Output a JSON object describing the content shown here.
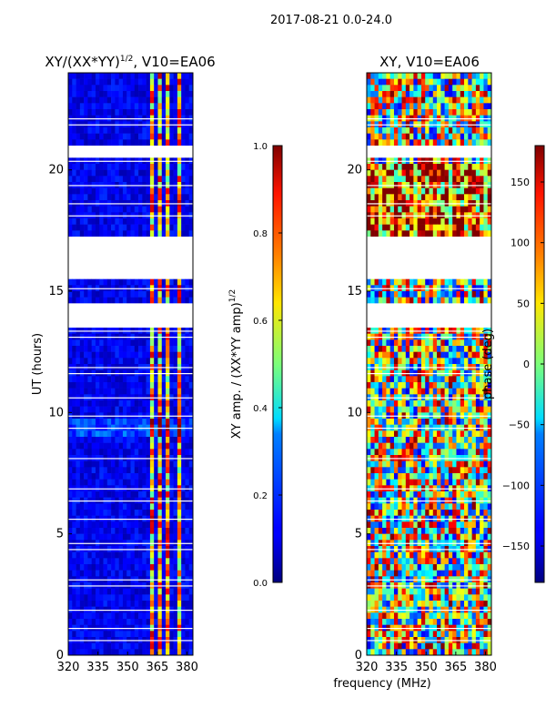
{
  "figure_title": "2017-08-21 0.0-24.0",
  "shared_xlabel": "frequency (MHz)",
  "colors": {
    "band_low": "#00008f",
    "band_mid": "#2ad4ff",
    "band_high": "#ffd400",
    "band_peak": "#ff2a00",
    "gap": "#ffffff"
  },
  "chart_data": [
    {
      "type": "heatmap",
      "title_text": "XY/(XX*YY)",
      "title_exp": "1/2",
      "title_suffix": ", V10=EA06",
      "ylabel": "UT (hours)",
      "xlabel": "",
      "xlim": [
        320,
        383
      ],
      "ylim": [
        0,
        24
      ],
      "xticks": [
        320,
        335,
        350,
        365,
        380
      ],
      "yticks": [
        0,
        5,
        10,
        15,
        20
      ],
      "colorbar": {
        "label_text": "XY amp. / (XX*YY amp)",
        "label_exp": "1/2",
        "range": [
          0.0,
          1.0
        ],
        "ticks": [
          "0.0",
          "0.2",
          "0.4",
          "0.6",
          "0.8",
          "1.0"
        ]
      },
      "data_gaps_hours": [
        [
          14.7,
          13.6
        ],
        [
          17.3,
          16.2
        ],
        [
          15.5,
          16.0
        ],
        [
          20.5,
          21.0
        ]
      ],
      "high_amplitude_freq_bands_mhz": [
        [
          361,
          364
        ],
        [
          365,
          368
        ],
        [
          370,
          372
        ],
        [
          375,
          378
        ]
      ]
    },
    {
      "type": "heatmap",
      "title_text": "XY, V10=EA06",
      "ylabel": "",
      "xlabel": "frequency (MHz)",
      "xlim": [
        320,
        383
      ],
      "ylim": [
        0,
        24
      ],
      "xticks": [
        320,
        335,
        350,
        365,
        380
      ],
      "yticks": [
        0,
        5,
        10,
        15,
        20
      ],
      "colorbar": {
        "label_text": "phase (deg)",
        "range": [
          -180,
          180
        ],
        "ticks": [
          "−150",
          "−100",
          "−50",
          "0",
          "50",
          "100",
          "150"
        ]
      },
      "data_gaps_hours": [
        [
          14.7,
          13.6
        ],
        [
          17.3,
          16.2
        ],
        [
          15.5,
          16.0
        ],
        [
          20.5,
          21.0
        ]
      ]
    }
  ]
}
